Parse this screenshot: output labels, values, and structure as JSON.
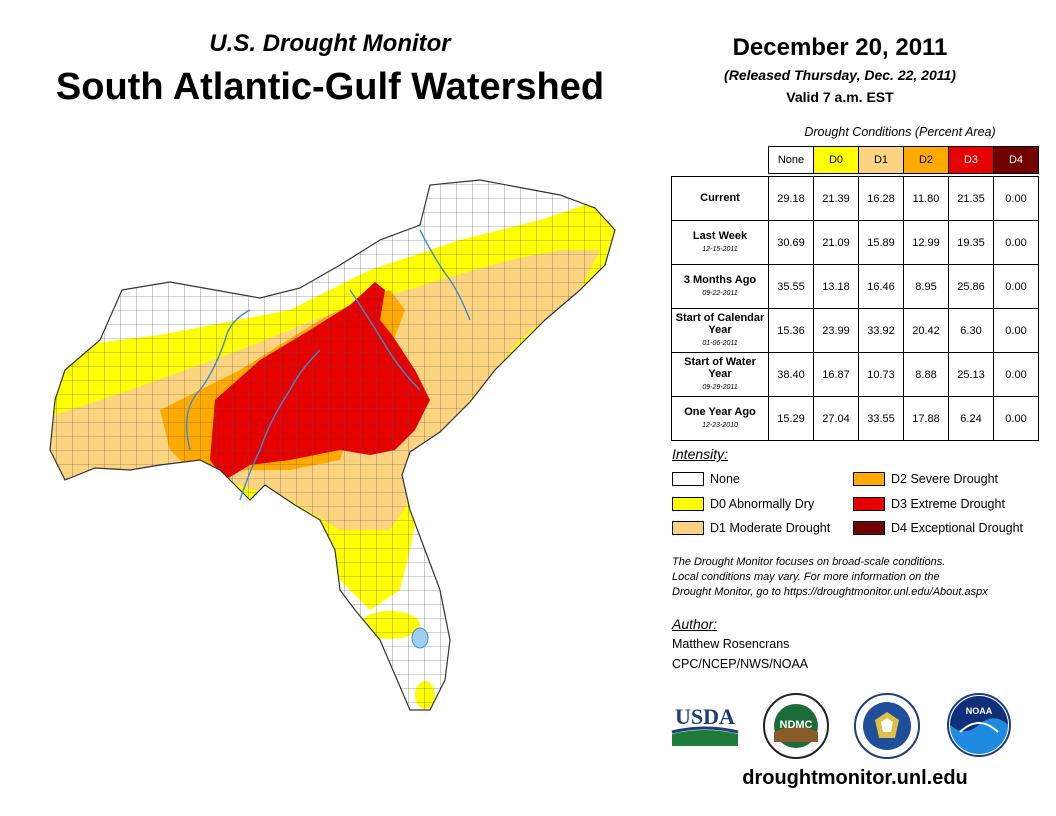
{
  "header": {
    "subtitle": "U.S. Drought Monitor",
    "title": "South Atlantic-Gulf Watershed",
    "date": "December 20, 2011",
    "released": "(Released Thursday, Dec. 22, 2011)",
    "valid": "Valid 7 a.m. EST"
  },
  "table": {
    "caption": "Drought Conditions (Percent Area)",
    "columns": [
      "None",
      "D0",
      "D1",
      "D2",
      "D3",
      "D4"
    ],
    "column_colors": [
      "#ffffff",
      "#ffff00",
      "#fcd37f",
      "#ffaa00",
      "#e60000",
      "#730000"
    ],
    "rows": [
      {
        "label": "Current",
        "date": "",
        "values": [
          "29.18",
          "21.39",
          "16.28",
          "11.80",
          "21.35",
          "0.00"
        ]
      },
      {
        "label": "Last Week",
        "date": "12-15-2011",
        "values": [
          "30.69",
          "21.09",
          "15.89",
          "12.99",
          "19.35",
          "0.00"
        ]
      },
      {
        "label": "3 Months Ago",
        "date": "09-22-2011",
        "values": [
          "35.55",
          "13.18",
          "16.46",
          "8.95",
          "25.86",
          "0.00"
        ]
      },
      {
        "label": "Start of Calendar Year",
        "date": "01-06-2011",
        "values": [
          "15.36",
          "23.99",
          "33.92",
          "20.42",
          "6.30",
          "0.00"
        ]
      },
      {
        "label": "Start of Water Year",
        "date": "09-29-2011",
        "values": [
          "38.40",
          "16.87",
          "10.73",
          "8.88",
          "25.13",
          "0.00"
        ]
      },
      {
        "label": "One Year Ago",
        "date": "12-23-2010",
        "values": [
          "15.29",
          "27.04",
          "33.55",
          "17.88",
          "6.24",
          "0.00"
        ]
      }
    ]
  },
  "legend": {
    "heading": "Intensity:",
    "items": [
      {
        "label": "None",
        "color": "#ffffff"
      },
      {
        "label": "D0 Abnormally Dry",
        "color": "#ffff00"
      },
      {
        "label": "D1 Moderate Drought",
        "color": "#fcd37f"
      },
      {
        "label": "D2 Severe Drought",
        "color": "#ffaa00"
      },
      {
        "label": "D3 Extreme Drought",
        "color": "#e60000"
      },
      {
        "label": "D4 Exceptional Drought",
        "color": "#730000"
      }
    ]
  },
  "disclaimer": [
    "The Drought Monitor focuses on broad-scale conditions.",
    "Local conditions may vary. For more information on the",
    "Drought Monitor, go to https://droughtmonitor.unl.edu/About.aspx"
  ],
  "author": {
    "heading": "Author:",
    "name": "Matthew Rosencrans",
    "org": "CPC/NCEP/NWS/NOAA"
  },
  "logos": {
    "usda": "USDA",
    "ndmc": "NDMC",
    "noaa": "NOAA"
  },
  "website": "droughtmonitor.unl.edu"
}
